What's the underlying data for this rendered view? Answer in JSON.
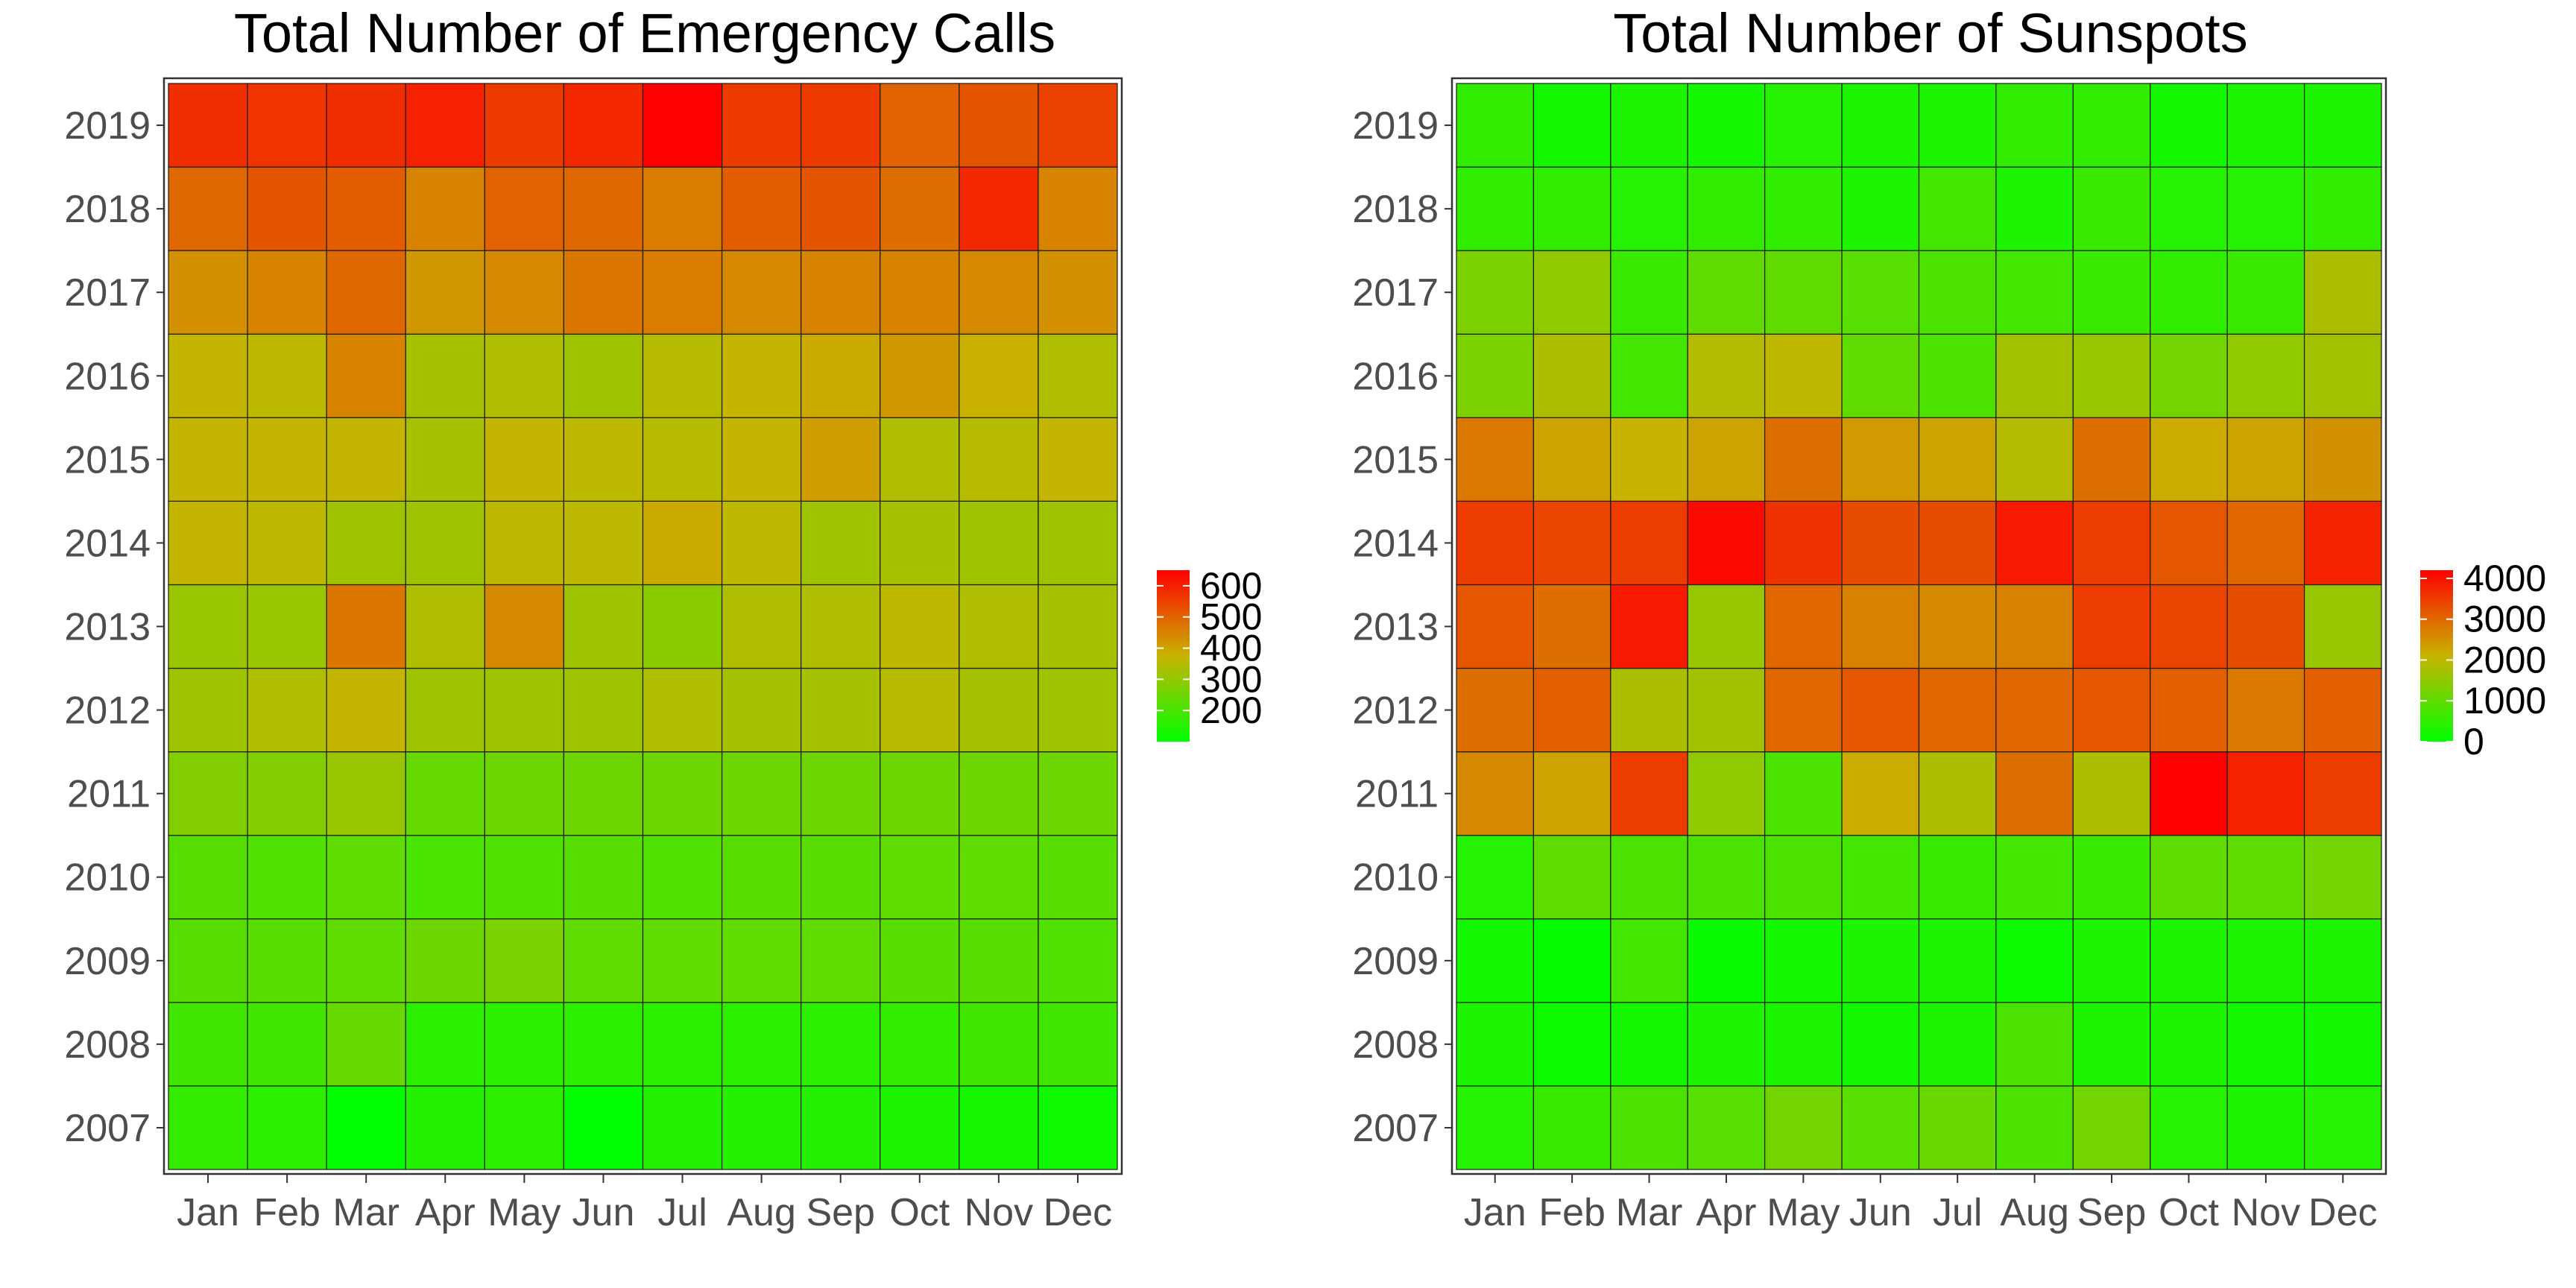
{
  "chart_data": [
    {
      "type": "heatmap",
      "title": "Total Number of Emergency Calls",
      "xlabel": "",
      "ylabel": "",
      "x": [
        "Jan",
        "Feb",
        "Mar",
        "Apr",
        "May",
        "Jun",
        "Jul",
        "Aug",
        "Sep",
        "Oct",
        "Nov",
        "Dec"
      ],
      "y": [
        "2007",
        "2008",
        "2009",
        "2010",
        "2011",
        "2012",
        "2013",
        "2014",
        "2015",
        "2016",
        "2017",
        "2018",
        "2019"
      ],
      "values": [
        [
          170,
          160,
          100,
          150,
          160,
          100,
          150,
          150,
          150,
          140,
          130,
          120
        ],
        [
          190,
          190,
          240,
          160,
          160,
          160,
          160,
          160,
          160,
          170,
          190,
          190
        ],
        [
          220,
          220,
          230,
          250,
          270,
          230,
          230,
          230,
          230,
          220,
          220,
          210
        ],
        [
          220,
          210,
          230,
          200,
          210,
          220,
          210,
          220,
          220,
          230,
          230,
          220
        ],
        [
          280,
          280,
          310,
          240,
          250,
          250,
          250,
          250,
          250,
          250,
          250,
          250
        ],
        [
          320,
          340,
          370,
          320,
          320,
          320,
          340,
          330,
          330,
          350,
          330,
          320
        ],
        [
          310,
          310,
          470,
          340,
          440,
          320,
          290,
          340,
          340,
          360,
          340,
          330
        ],
        [
          370,
          360,
          320,
          320,
          360,
          360,
          390,
          360,
          320,
          330,
          320,
          320
        ],
        [
          370,
          370,
          370,
          330,
          370,
          360,
          350,
          370,
          410,
          340,
          350,
          370
        ],
        [
          370,
          360,
          450,
          330,
          340,
          320,
          350,
          370,
          390,
          420,
          380,
          340
        ],
        [
          430,
          450,
          490,
          420,
          440,
          470,
          460,
          440,
          450,
          450,
          440,
          430
        ],
        [
          490,
          520,
          510,
          450,
          500,
          490,
          460,
          510,
          520,
          480,
          590,
          450
        ],
        [
          580,
          570,
          580,
          600,
          560,
          590,
          650,
          560,
          560,
          500,
          520,
          550
        ]
      ],
      "colorbar": {
        "min": 100,
        "max": 650,
        "ticks": [
          200,
          300,
          400,
          500,
          600
        ],
        "low_color": "#00ff00",
        "mid_color": "#c8b400",
        "high_color": "#ff0000"
      },
      "legend_position": "right"
    },
    {
      "type": "heatmap",
      "title": "Total Number of Sunspots",
      "xlabel": "",
      "ylabel": "",
      "x": [
        "Jan",
        "Feb",
        "Mar",
        "Apr",
        "May",
        "Jun",
        "Jul",
        "Aug",
        "Sep",
        "Oct",
        "Nov",
        "Dec"
      ],
      "y": [
        "2007",
        "2008",
        "2009",
        "2010",
        "2011",
        "2012",
        "2013",
        "2014",
        "2015",
        "2016",
        "2017",
        "2018",
        "2019"
      ],
      "values": [
        [
          400,
          600,
          800,
          900,
          1200,
          900,
          1100,
          800,
          1200,
          400,
          300,
          400
        ],
        [
          300,
          150,
          200,
          300,
          300,
          200,
          300,
          800,
          300,
          300,
          200,
          200
        ],
        [
          200,
          50,
          700,
          100,
          200,
          300,
          300,
          150,
          300,
          300,
          300,
          300
        ],
        [
          400,
          1000,
          800,
          800,
          800,
          700,
          600,
          700,
          600,
          1000,
          1000,
          1200
        ],
        [
          2600,
          2300,
          3500,
          1500,
          800,
          2200,
          1800,
          2900,
          1800,
          4200,
          3800,
          3500
        ],
        [
          2900,
          3100,
          1800,
          1700,
          3000,
          3200,
          3000,
          3000,
          3200,
          3100,
          2800,
          3100
        ],
        [
          3200,
          2900,
          3900,
          1600,
          3000,
          2700,
          2600,
          2700,
          3500,
          3400,
          3300,
          1600
        ],
        [
          3500,
          3400,
          3500,
          4100,
          3600,
          3300,
          3300,
          3900,
          3500,
          3200,
          3000,
          3800
        ],
        [
          2800,
          2300,
          2100,
          2300,
          2900,
          2400,
          2300,
          1900,
          2900,
          2200,
          2300,
          2500
        ],
        [
          1300,
          1800,
          700,
          1900,
          2000,
          1000,
          800,
          1700,
          1600,
          1200,
          1500,
          1700
        ],
        [
          1300,
          1500,
          600,
          1000,
          1000,
          900,
          800,
          700,
          600,
          500,
          600,
          1800
        ],
        [
          500,
          500,
          400,
          500,
          500,
          300,
          700,
          300,
          600,
          400,
          400,
          500
        ],
        [
          500,
          200,
          300,
          200,
          400,
          300,
          300,
          500,
          500,
          200,
          300,
          300
        ]
      ],
      "colorbar": {
        "min": 0,
        "max": 4200,
        "ticks": [
          0,
          1000,
          2000,
          3000,
          4000
        ],
        "low_color": "#00ff00",
        "mid_color": "#c8b400",
        "high_color": "#ff0000"
      },
      "legend_position": "right"
    }
  ]
}
